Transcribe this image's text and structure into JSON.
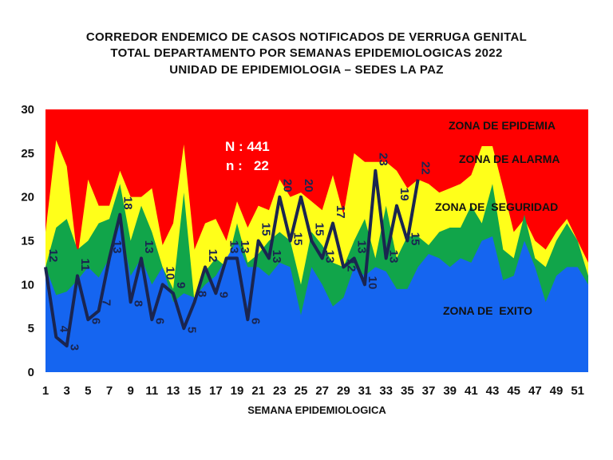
{
  "title_lines": [
    "CORREDOR ENDEMICO DE CASOS NOTIFICADOS DE VERRUGA GENITAL",
    "TOTAL DEPARTAMENTO POR SEMANAS EPIDEMIOLOGICAS 2022",
    "UNIDAD DE EPIDEMIOLOGIA – SEDES LA PAZ"
  ],
  "chart_data": {
    "type": "area",
    "xlabel": "SEMANA EPIDEMIOLOGICA",
    "ylabel": "",
    "ylim": [
      0,
      30
    ],
    "y_ticks": [
      0,
      5,
      10,
      15,
      20,
      25,
      30
    ],
    "x_ticks": [
      1,
      3,
      5,
      7,
      9,
      11,
      13,
      15,
      17,
      19,
      21,
      23,
      25,
      27,
      29,
      31,
      33,
      35,
      37,
      39,
      41,
      43,
      45,
      47,
      49,
      51
    ],
    "weeks": [
      1,
      2,
      3,
      4,
      5,
      6,
      7,
      8,
      9,
      10,
      11,
      12,
      13,
      14,
      15,
      16,
      17,
      18,
      19,
      20,
      21,
      22,
      23,
      24,
      25,
      26,
      27,
      28,
      29,
      30,
      31,
      32,
      33,
      34,
      35,
      36,
      37,
      38,
      39,
      40,
      41,
      42,
      43,
      44,
      45,
      46,
      47,
      48,
      49,
      50,
      51,
      52
    ],
    "zones": [
      {
        "name": "ZONA DE EXITO",
        "color": "#1565f0",
        "values": [
          12,
          8.8,
          9.2,
          10.5,
          12,
          10.8,
          13,
          17,
          11,
          13,
          10,
          12,
          8,
          9,
          8.5,
          10,
          11,
          13,
          15,
          12,
          12,
          11,
          12.5,
          12,
          6.5,
          12,
          10,
          7.5,
          8.5,
          12,
          11,
          12,
          11.5,
          9.5,
          9.5,
          12,
          13.5,
          13,
          12,
          13,
          12.5,
          15,
          15.5,
          10.5,
          11,
          15,
          12,
          8,
          11,
          12,
          12,
          10
        ]
      },
      {
        "name": "ZONA DE SEGURIDAD",
        "color": "#11a54a",
        "values": [
          12,
          16.5,
          17.5,
          14,
          15,
          17,
          17.5,
          21.5,
          15,
          19,
          16,
          12,
          9.5,
          20.5,
          8,
          11.5,
          13,
          12,
          17,
          12.5,
          13.5,
          15,
          16,
          15,
          10,
          16,
          14.5,
          12.5,
          12,
          15,
          17.5,
          13,
          19,
          13,
          15.5,
          15.5,
          14.5,
          16,
          16.5,
          16.5,
          19,
          17,
          21.5,
          14,
          13,
          18,
          13,
          12,
          15,
          17,
          15,
          11
        ]
      },
      {
        "name": "ZONA DE ALARMA",
        "color": "#ffff1a",
        "values": [
          16,
          26.5,
          23.5,
          13,
          22,
          19,
          19,
          23,
          20,
          20,
          21,
          14.5,
          17,
          26,
          14,
          17,
          17.5,
          15,
          19.5,
          16.5,
          19,
          18.5,
          22,
          20,
          20.5,
          19.5,
          18.5,
          22.5,
          18,
          25,
          24,
          24,
          24,
          23,
          21,
          22,
          21.5,
          20.5,
          21,
          21.5,
          22.5,
          25.8,
          25.8,
          21,
          16,
          17.5,
          15,
          14,
          16,
          17.5,
          15,
          12.5
        ]
      },
      {
        "name": "ZONA DE EPIDEMIA",
        "color": "#ff0000",
        "values": [
          30,
          30,
          30,
          30,
          30,
          30,
          30,
          30,
          30,
          30,
          30,
          30,
          30,
          30,
          30,
          30,
          30,
          30,
          30,
          30,
          30,
          30,
          30,
          30,
          30,
          30,
          30,
          30,
          30,
          30,
          30,
          30,
          30,
          30,
          30,
          30,
          30,
          30,
          30,
          30,
          30,
          30,
          30,
          30,
          30,
          30,
          30,
          30,
          30,
          30,
          30,
          30
        ]
      }
    ],
    "series": [
      {
        "weeks": [
          1,
          2,
          3,
          4,
          5,
          6,
          7,
          8,
          9,
          10,
          11,
          12,
          13,
          14,
          15,
          16,
          17,
          18,
          19,
          20,
          21,
          22,
          23,
          24,
          25,
          26,
          27,
          28,
          29,
          30,
          31,
          32,
          33,
          34,
          35,
          36
        ],
        "values": [
          12,
          4,
          3,
          11,
          6,
          7,
          13,
          18,
          8,
          13,
          6,
          10,
          9,
          5,
          8,
          12,
          9,
          13,
          13,
          6,
          15,
          13,
          20,
          15,
          20,
          15,
          13,
          17,
          12,
          13,
          10,
          23,
          13,
          19,
          15,
          22
        ],
        "color": "#1a2550"
      }
    ],
    "annotations": [
      "N : 441",
      "n :   22"
    ],
    "zone_labels": [
      "ZONA DE EPIDEMIA",
      "ZONA DE ALARMA",
      "ZONA DE  SEGURIDAD",
      "ZONA DE  EXITO"
    ]
  }
}
